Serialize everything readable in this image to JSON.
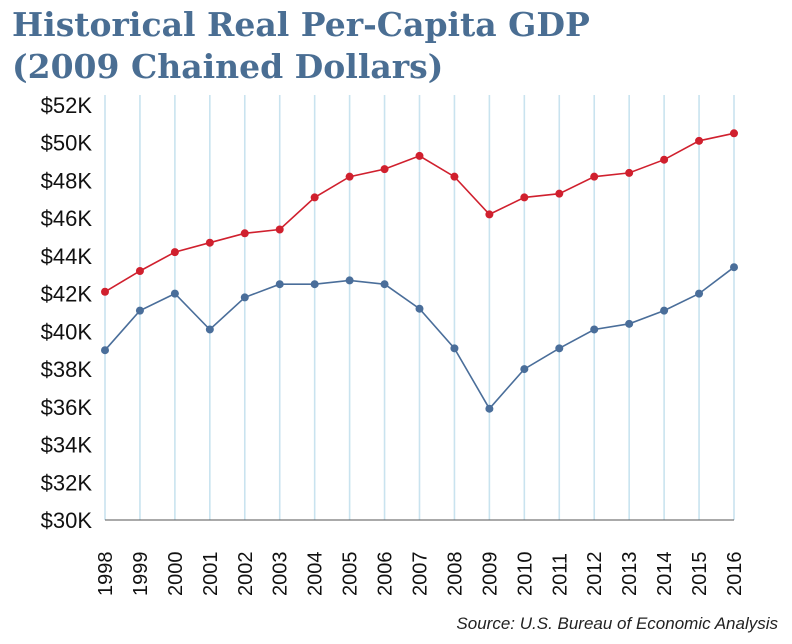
{
  "title_line1": "Historical Real Per-Capita GDP",
  "title_line2": "(2009 Chained Dollars)",
  "source": "Source: U.S. Bureau of Economic Analysis",
  "chart_data": {
    "type": "line",
    "title": "Historical Real Per-Capita GDP (2009 Chained Dollars)",
    "xlabel": "",
    "ylabel": "",
    "x": [
      "1998",
      "1999",
      "2000",
      "2001",
      "2002",
      "2003",
      "2004",
      "2005",
      "2006",
      "2007",
      "2008",
      "2009",
      "2010",
      "2011",
      "2012",
      "2013",
      "2014",
      "2015",
      "2016"
    ],
    "y_ticks": [
      "$30K",
      "$32K",
      "$34K",
      "$36K",
      "$38K",
      "$40K",
      "$42K",
      "$44K",
      "$46K",
      "$48K",
      "$50K",
      "$52K"
    ],
    "ylim": [
      30000,
      52000
    ],
    "grid": "vertical",
    "legend": "none",
    "series": [
      {
        "color": "#d0202e",
        "values": [
          42100,
          43200,
          44200,
          44700,
          45200,
          45400,
          47100,
          48200,
          48600,
          49300,
          48200,
          46200,
          47100,
          47300,
          48200,
          48400,
          49100,
          50100,
          50500
        ]
      },
      {
        "color": "#4a6e9a",
        "values": [
          39000,
          41100,
          42000,
          40100,
          41800,
          42500,
          42500,
          42700,
          42500,
          41200,
          39100,
          35900,
          38000,
          39100,
          40100,
          40400,
          41100,
          42000,
          43400
        ]
      }
    ],
    "colors": {
      "grid": "#c9e3ef",
      "axis": "#555555",
      "text": "#111111"
    }
  }
}
